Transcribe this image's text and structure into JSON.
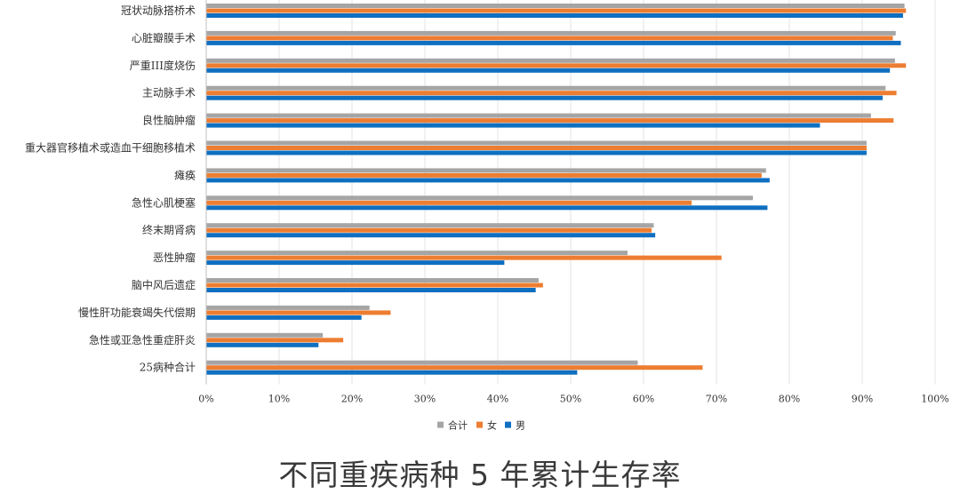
{
  "chart_data": {
    "type": "bar",
    "orientation": "horizontal",
    "title": "不同重疾病种 5 年累计生存率",
    "categories": [
      "冠状动脉搭桥术",
      "心脏瓣膜手术",
      "严重III度烧伤",
      "主动脉手术",
      "良性脑肿瘤",
      "重大器官移植术或造血干细胞移植术",
      "瘫痪",
      "急性心肌梗塞",
      "终末期肾病",
      "恶性肿瘤",
      "脑中风后遗症",
      "慢性肝功能衰竭失代偿期",
      "急性或亚急性重症肝炎",
      "25病种合计"
    ],
    "series": [
      {
        "name": "合计",
        "color": "#a5a5a5",
        "values": [
          0.958,
          0.946,
          0.945,
          0.932,
          0.912,
          0.906,
          0.768,
          0.75,
          0.614,
          0.578,
          0.456,
          0.224,
          0.16,
          0.592
        ]
      },
      {
        "name": "女",
        "color": "#ed7d31",
        "values": [
          0.96,
          0.942,
          0.96,
          0.947,
          0.943,
          0.906,
          0.762,
          0.666,
          0.611,
          0.707,
          0.462,
          0.253,
          0.188,
          0.681
        ]
      },
      {
        "name": "男",
        "color": "#0f6fc0",
        "values": [
          0.956,
          0.953,
          0.938,
          0.928,
          0.842,
          0.906,
          0.773,
          0.77,
          0.616,
          0.409,
          0.452,
          0.213,
          0.154,
          0.509
        ]
      }
    ],
    "legend_order": [
      "合计",
      "女",
      "男"
    ],
    "legend_position": "bottom",
    "xlim": [
      0,
      1
    ],
    "x_ticks": [
      "0%",
      "10%",
      "20%",
      "30%",
      "40%",
      "50%",
      "60%",
      "70%",
      "80%",
      "90%",
      "100%"
    ],
    "grid": true,
    "xlabel": "",
    "ylabel": ""
  }
}
